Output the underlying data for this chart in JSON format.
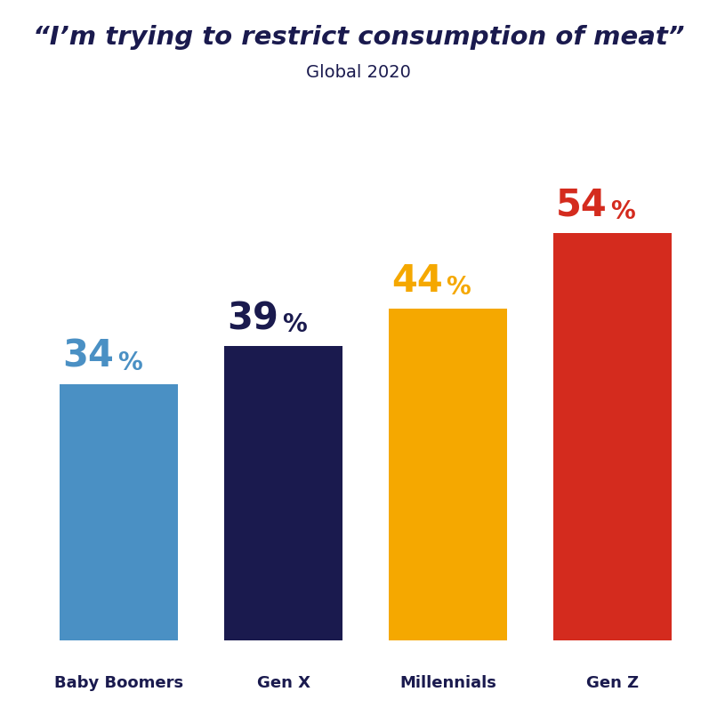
{
  "title_line1": "“I’m trying to restrict consumption of meat”",
  "title_line2": "Global 2020",
  "categories": [
    "Baby Boomers",
    "Gen X",
    "Millennials",
    "Gen Z"
  ],
  "values": [
    34,
    39,
    44,
    54
  ],
  "bar_colors": [
    "#4A90C4",
    "#1A1A4E",
    "#F5A800",
    "#D42B1E"
  ],
  "label_colors": [
    "#4A90C4",
    "#1A1A4E",
    "#F5A800",
    "#D42B1E"
  ],
  "title_color": "#1A1A4E",
  "subtitle_color": "#1A1A4E",
  "xlabel_color": "#1A1A4E",
  "bg_color": "#FFFFFF",
  "ylim": [
    0,
    70
  ],
  "bar_width": 0.72,
  "title_fontsize": 21,
  "subtitle_fontsize": 14,
  "label_num_fontsize": 30,
  "label_pct_fontsize": 20,
  "cat_fontsize": 13
}
